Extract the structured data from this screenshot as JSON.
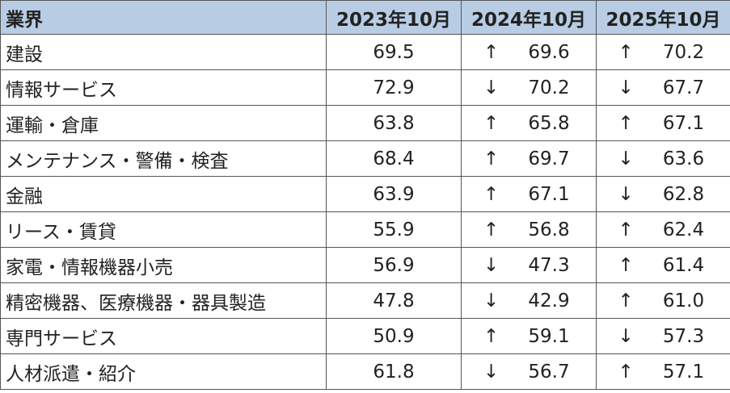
{
  "table": {
    "header": [
      "業界",
      "2023年10月",
      "2024年10月",
      "2025年10月"
    ],
    "rows": [
      [
        "建設",
        "69.5",
        "↑",
        "69.6",
        "↑",
        "70.2"
      ],
      [
        "情報サービス",
        "72.9",
        "↓",
        "70.2",
        "↓",
        "67.7"
      ],
      [
        "運輸・倉庫",
        "63.8",
        "↑",
        "65.8",
        "↑",
        "67.1"
      ],
      [
        "メンテナンス・警備・検査",
        "68.4",
        "↑",
        "69.7",
        "↓",
        "63.6"
      ],
      [
        "金融",
        "63.9",
        "↑",
        "67.1",
        "↓",
        "62.8"
      ],
      [
        "リース・賃貸",
        "55.9",
        "↑",
        "56.8",
        "↑",
        "62.4"
      ],
      [
        "家電・情報機器小売",
        "56.9",
        "↓",
        "47.3",
        "↑",
        "61.4"
      ],
      [
        "精密機器、医療機器・器具製造",
        "47.8",
        "↓",
        "42.9",
        "↑",
        "61.0"
      ],
      [
        "専門サービス",
        "50.9",
        "↑",
        "59.1",
        "↓",
        "57.3"
      ],
      [
        "人材派遣・紹介",
        "61.8",
        "↓",
        "56.7",
        "↑",
        "57.1"
      ]
    ]
  }
}
